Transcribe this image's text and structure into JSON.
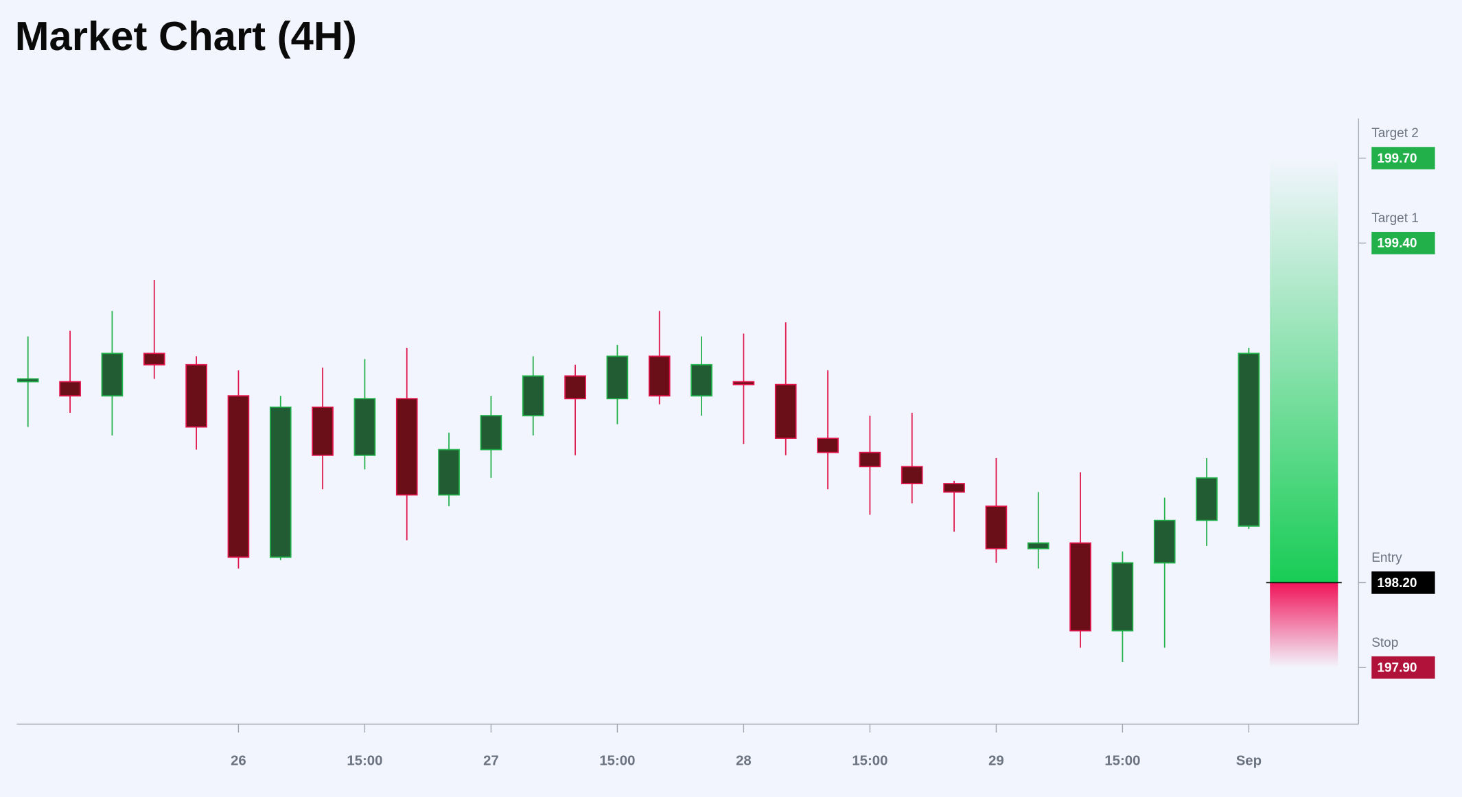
{
  "chart_data": {
    "type": "candlestick",
    "title": "Market Chart (4H)",
    "categories": [
      null,
      null,
      null,
      null,
      null,
      "26",
      null,
      null,
      "15:00",
      null,
      null,
      "27",
      null,
      null,
      "15:00",
      null,
      null,
      "28",
      null,
      null,
      "15:00",
      null,
      null,
      "29",
      null,
      null,
      "15:00",
      null,
      null,
      "Sep"
    ],
    "open": [
      198.91,
      198.91,
      198.86,
      199.01,
      198.97,
      198.86,
      198.29,
      198.82,
      198.65,
      198.85,
      198.51,
      198.67,
      198.79,
      198.93,
      198.85,
      199.0,
      198.86,
      198.91,
      198.9,
      198.71,
      198.66,
      198.61,
      198.55,
      198.47,
      198.32,
      198.34,
      198.03,
      198.27,
      198.42,
      198.4
    ],
    "high": [
      199.07,
      199.09,
      199.16,
      199.27,
      199.0,
      198.95,
      198.86,
      198.96,
      198.99,
      199.03,
      198.73,
      198.86,
      199.0,
      198.97,
      199.04,
      199.16,
      199.07,
      199.08,
      199.12,
      198.95,
      198.79,
      198.8,
      198.56,
      198.64,
      198.52,
      198.59,
      198.31,
      198.5,
      198.64,
      199.03
    ],
    "low": [
      198.75,
      198.8,
      198.72,
      198.92,
      198.67,
      198.25,
      198.28,
      198.53,
      198.6,
      198.35,
      198.47,
      198.57,
      198.72,
      198.65,
      198.76,
      198.83,
      198.79,
      198.69,
      198.65,
      198.53,
      198.44,
      198.48,
      198.38,
      198.27,
      198.25,
      197.97,
      197.92,
      197.97,
      198.33,
      198.39
    ],
    "close": [
      198.92,
      198.86,
      199.01,
      198.97,
      198.75,
      198.29,
      198.82,
      198.65,
      198.85,
      198.51,
      198.67,
      198.79,
      198.93,
      198.85,
      199.0,
      198.86,
      198.97,
      198.9,
      198.71,
      198.66,
      198.61,
      198.55,
      198.52,
      198.32,
      198.34,
      198.03,
      198.27,
      198.42,
      198.57,
      199.01
    ],
    "up_color": "#22b04b",
    "down_color": "#e0144a",
    "ylim": [
      197.7,
      199.84
    ],
    "levels": [
      {
        "name": "Target 2",
        "value": 199.7,
        "label": "199.70",
        "color": "#22b04b"
      },
      {
        "name": "Target 1",
        "value": 199.4,
        "label": "199.40",
        "color": "#22b04b"
      },
      {
        "name": "Entry",
        "value": 198.2,
        "label": "198.20",
        "color": "#000000"
      },
      {
        "name": "Stop",
        "value": 197.9,
        "label": "197.90",
        "color": "#b0123a"
      }
    ]
  }
}
